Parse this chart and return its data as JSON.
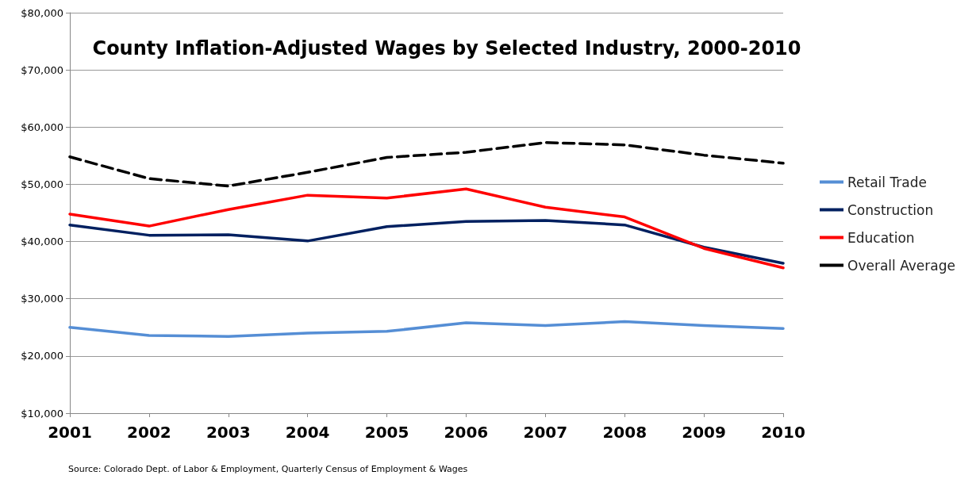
{
  "chart_data": {
    "type": "line",
    "title": "County Inflation-Adjusted Wages by Selected Industry, 2000-2010",
    "categories": [
      "2001",
      "2002",
      "2003",
      "2004",
      "2005",
      "2006",
      "2007",
      "2008",
      "2009",
      "2010"
    ],
    "series": [
      {
        "name": "Retail Trade",
        "color": "#558ed5",
        "values": [
          25000,
          23600,
          23400,
          24000,
          24300,
          25800,
          25300,
          26000,
          25300,
          24800
        ]
      },
      {
        "name": "Construction",
        "color": "#002060",
        "values": [
          42900,
          41100,
          41200,
          40100,
          42600,
          43500,
          43700,
          42900,
          39000,
          36200
        ]
      },
      {
        "name": "Education",
        "color": "#ff0000",
        "values": [
          44800,
          42700,
          45600,
          48100,
          47600,
          49200,
          46000,
          44300,
          38800,
          35400
        ]
      },
      {
        "name": "Overall Average",
        "color": "#000000",
        "line_style": "dashed",
        "values": [
          54800,
          51000,
          49700,
          52100,
          54700,
          55600,
          57300,
          56900,
          55100,
          53700
        ]
      }
    ],
    "ylim": [
      10000,
      80000
    ],
    "yticks": [
      {
        "value": 10000,
        "label": "$10,000"
      },
      {
        "value": 20000,
        "label": "$20,000"
      },
      {
        "value": 30000,
        "label": "$30,000"
      },
      {
        "value": 40000,
        "label": "$40,000"
      },
      {
        "value": 50000,
        "label": "$50,000"
      },
      {
        "value": 60000,
        "label": "$60,000"
      },
      {
        "value": 70000,
        "label": "$70,000"
      },
      {
        "value": 80000,
        "label": "$80,000"
      }
    ],
    "grid": "y",
    "legend": "right",
    "marker": "none",
    "line_style": "solid",
    "annotations": [
      "Source: Colorado Dept. of Labor & Employment, Quarterly Census of Employment & Wages"
    ]
  }
}
